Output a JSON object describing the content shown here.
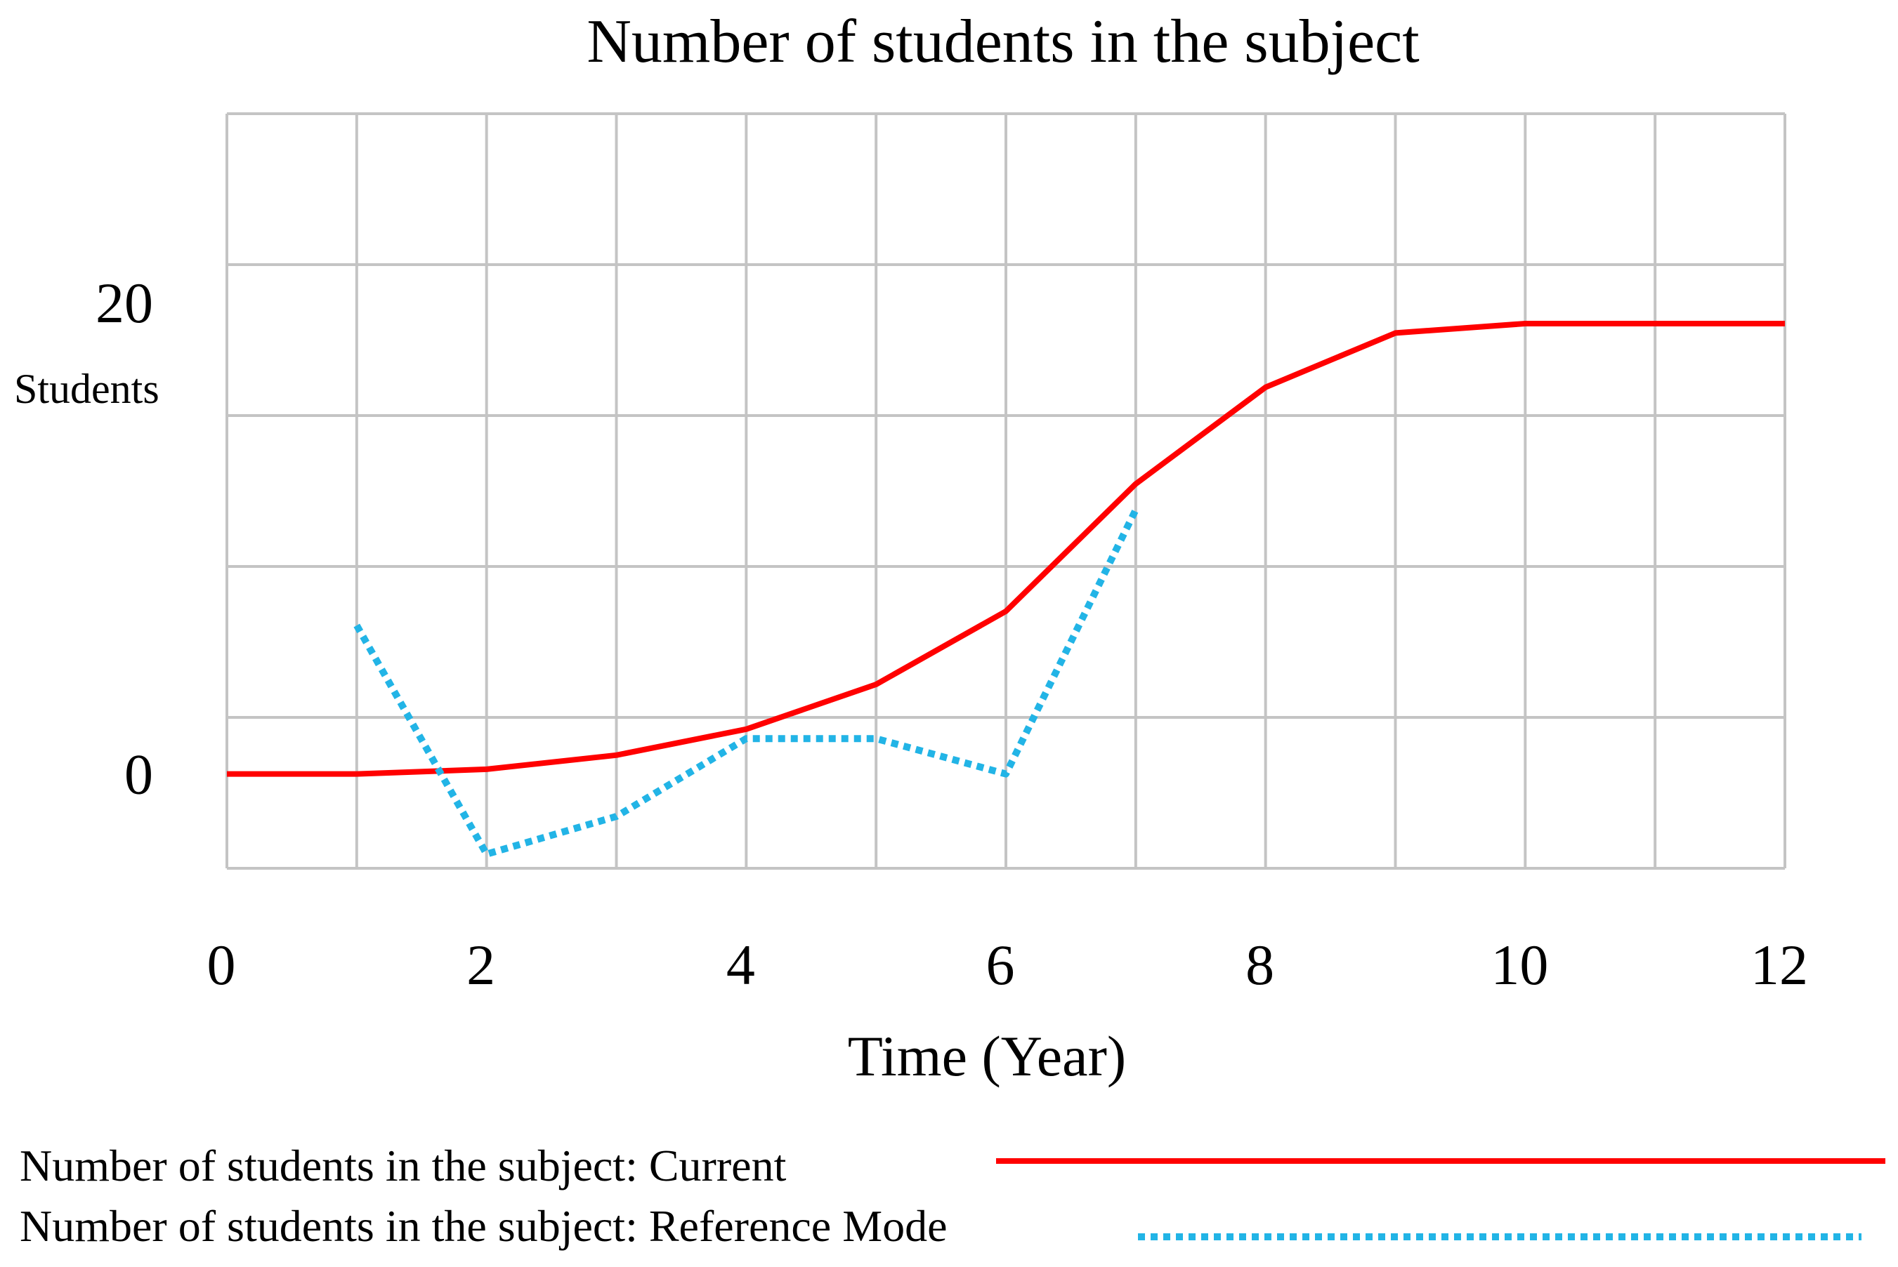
{
  "chart_data": {
    "type": "line",
    "title": "Number of students in the subject",
    "xlabel": "Time (Year)",
    "ylabel": "Students",
    "xlim": [
      0,
      12
    ],
    "ylim": [
      -4,
      28
    ],
    "x_ticks": [
      "0",
      "2",
      "4",
      "6",
      "8",
      "10",
      "12"
    ],
    "y_ticks": [
      {
        "value": 20,
        "label": "20"
      },
      {
        "value": 0,
        "label": "0"
      }
    ],
    "grid": true,
    "legend_position": "bottom",
    "series": [
      {
        "name": "Number of students in the subject: Current",
        "color": "#ff0000",
        "style": "solid",
        "x": [
          0,
          1,
          2,
          3,
          4,
          5,
          6,
          7,
          8,
          9,
          10,
          11,
          12
        ],
        "y": [
          0,
          0,
          0.2,
          0.8,
          1.9,
          3.8,
          6.9,
          12.3,
          16.4,
          18.7,
          19.1,
          19.1,
          19.1
        ]
      },
      {
        "name": "Number of students in the subject: Reference Mode",
        "color": "#22b4e6",
        "style": "dotted",
        "x": [
          1,
          2,
          3,
          4,
          5,
          6,
          7
        ],
        "y": [
          6.3,
          -3.4,
          -1.8,
          1.5,
          1.5,
          0,
          11.2
        ]
      }
    ]
  }
}
